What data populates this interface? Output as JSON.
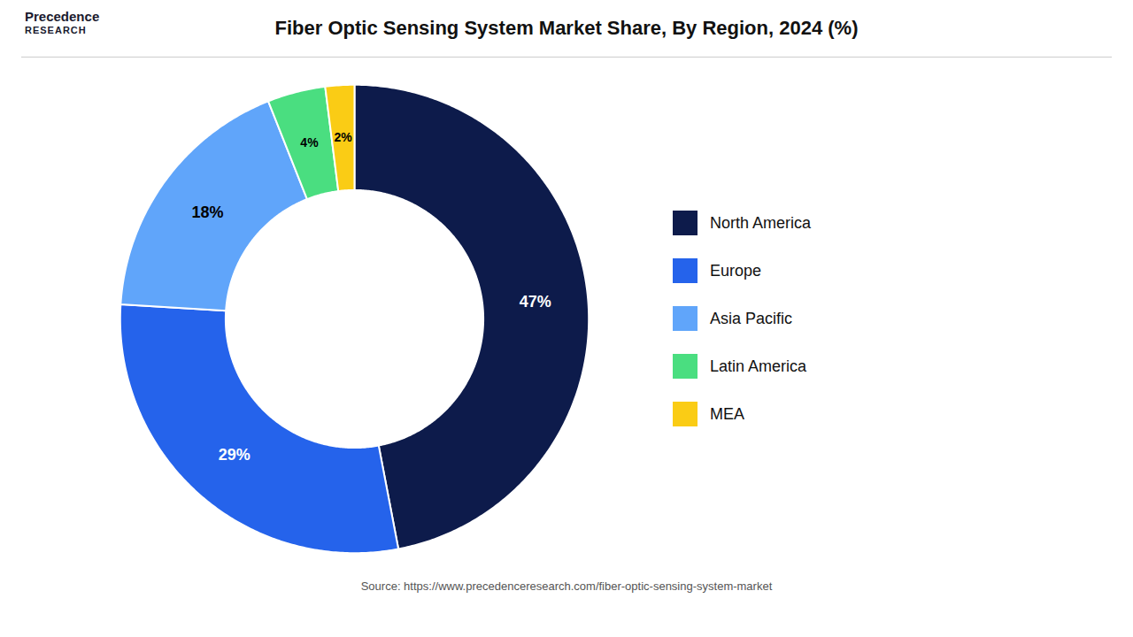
{
  "chart_data": {
    "type": "pie",
    "title": "Fiber Optic Sensing System Market Share, By Region, 2024 (%)",
    "categories": [
      "North America",
      "Europe",
      "Asia Pacific",
      "Latin America",
      "MEA"
    ],
    "values": [
      47,
      29,
      18,
      4,
      2
    ],
    "value_labels": [
      "47%",
      "29%",
      "18%",
      "4%",
      "2%"
    ],
    "colors": [
      "#0d1b4b",
      "#2563eb",
      "#60a5fa",
      "#4ade80",
      "#facc15"
    ],
    "data_labels": true,
    "legend": "right",
    "annotations": [
      "Precedence",
      "RESEARCH",
      "Source: https://www.precedenceresearch.com/fiber-optic-sensing-system-market"
    ]
  }
}
